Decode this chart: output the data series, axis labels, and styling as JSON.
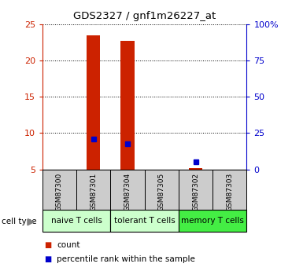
{
  "title": "GDS2327 / gnf1m26227_at",
  "samples": [
    "GSM87300",
    "GSM87301",
    "GSM87304",
    "GSM87305",
    "GSM87302",
    "GSM87303"
  ],
  "counts": [
    5.0,
    23.5,
    22.7,
    5.0,
    5.2,
    5.0
  ],
  "percentile_ranks": [
    null,
    9.2,
    8.5,
    null,
    6.0,
    null
  ],
  "ylim_left": [
    5,
    25
  ],
  "ylim_right": [
    0,
    100
  ],
  "yticks_left": [
    5,
    10,
    15,
    20,
    25
  ],
  "yticks_right": [
    0,
    25,
    50,
    75,
    100
  ],
  "ytick_labels_right": [
    "0",
    "25",
    "50",
    "75",
    "100%"
  ],
  "bar_color": "#cc2200",
  "dot_color": "#0000cc",
  "bar_width": 0.4,
  "background_color": "#ffffff",
  "left_tick_color": "#cc2200",
  "right_tick_color": "#0000cc",
  "label_box_color": "#cccccc",
  "groups": [
    {
      "label": "naive T cells",
      "start": 0,
      "end": 1,
      "color": "#ccffcc"
    },
    {
      "label": "tolerant T cells",
      "start": 2,
      "end": 3,
      "color": "#ccffcc"
    },
    {
      "label": "memory T cells",
      "start": 4,
      "end": 5,
      "color": "#44ee44"
    }
  ],
  "legend_items": [
    {
      "label": "count",
      "color": "#cc2200",
      "marker": "s"
    },
    {
      "label": "percentile rank within the sample",
      "color": "#0000cc",
      "marker": "s"
    }
  ]
}
